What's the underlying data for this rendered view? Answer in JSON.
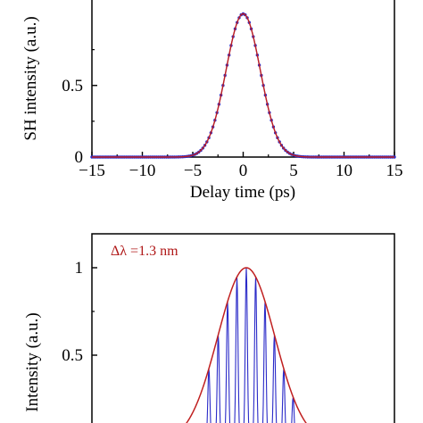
{
  "colors": {
    "curve": "#2a2ac8",
    "fit": "#c02020",
    "axis": "#000000",
    "annotation": "#b01818"
  },
  "chart_data": [
    {
      "type": "line",
      "xlabel": "Delay time (ps)",
      "ylabel": "SH intensity (a.u.)",
      "xlim": [
        -15,
        15
      ],
      "ylim": [
        0,
        1.0
      ],
      "x_ticks": [
        -15,
        -10,
        -5,
        0,
        5,
        10,
        15
      ],
      "x_tick_labels": [
        "−15",
        "−10",
        "−5",
        "0",
        "5",
        "10",
        "15"
      ],
      "y_ticks": [
        0,
        0.5
      ],
      "y_tick_labels": [
        "0",
        "0.5"
      ],
      "grid": false,
      "series": [
        {
          "kind": "measured-points",
          "peak_x": 0,
          "peak_y": 1.0,
          "fwhm_ps": 4.0
        },
        {
          "kind": "fit-curve",
          "peak_x": 0,
          "peak_y": 1.0,
          "fwhm_ps": 4.0
        }
      ]
    },
    {
      "type": "line",
      "xlabel": "",
      "ylabel": "Intensity (a.u.)",
      "ylim": [
        0,
        1.1
      ],
      "y_ticks": [
        1,
        0.5
      ],
      "y_tick_labels": [
        "1",
        "0.5"
      ],
      "annotation": "Δλ =1.3 nm",
      "grid": false,
      "series": [
        {
          "kind": "spectrum-fringes",
          "peak_y": 1.0,
          "fringe_count": 13
        },
        {
          "kind": "envelope-fit",
          "peak_y": 1.0
        }
      ]
    }
  ]
}
